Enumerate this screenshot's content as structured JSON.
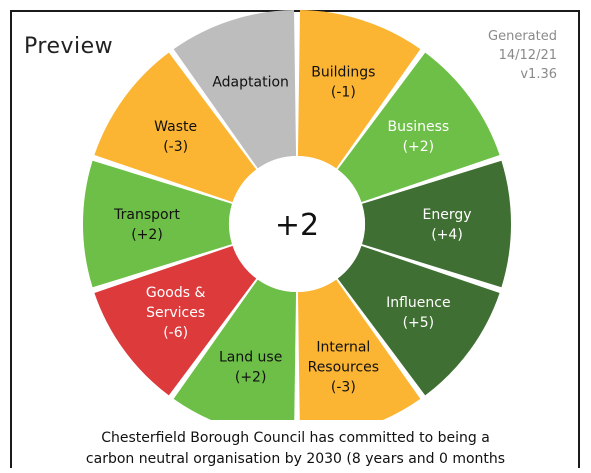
{
  "header": {
    "title": "Preview"
  },
  "meta": {
    "generated_label": "Generated",
    "date": "14/12/21",
    "version": "v1.36"
  },
  "wheel": {
    "center_label": "+2",
    "segments": [
      {
        "name": "Buildings",
        "score": "(-1)",
        "color": "#fbb533",
        "text_color": "#111111"
      },
      {
        "name": "Business",
        "score": "(+2)",
        "color": "#6dbf47",
        "text_color": "#ffffff"
      },
      {
        "name": "Energy",
        "score": "(+4)",
        "color": "#3f6f32",
        "text_color": "#ffffff"
      },
      {
        "name": "Influence",
        "score": "(+5)",
        "color": "#3f6f32",
        "text_color": "#ffffff"
      },
      {
        "name": "Internal Resources",
        "score": "(-3)",
        "color": "#fbb533",
        "text_color": "#111111"
      },
      {
        "name": "Land use",
        "score": "(+2)",
        "color": "#6dbf47",
        "text_color": "#111111"
      },
      {
        "name": "Goods & Services",
        "score": "(-6)",
        "color": "#dd3a3c",
        "text_color": "#ffffff"
      },
      {
        "name": "Transport",
        "score": "(+2)",
        "color": "#6dbf47",
        "text_color": "#111111"
      },
      {
        "name": "Waste",
        "score": "(-3)",
        "color": "#fbb533",
        "text_color": "#111111"
      },
      {
        "name": "Adaptation",
        "score": "",
        "color": "#bdbdbd",
        "text_color": "#111111"
      }
    ]
  },
  "caption": {
    "line1": "Chesterfield Borough Council has committed to being a",
    "line2": "carbon neutral organisation by 2030 (8 years and 0 months"
  }
}
